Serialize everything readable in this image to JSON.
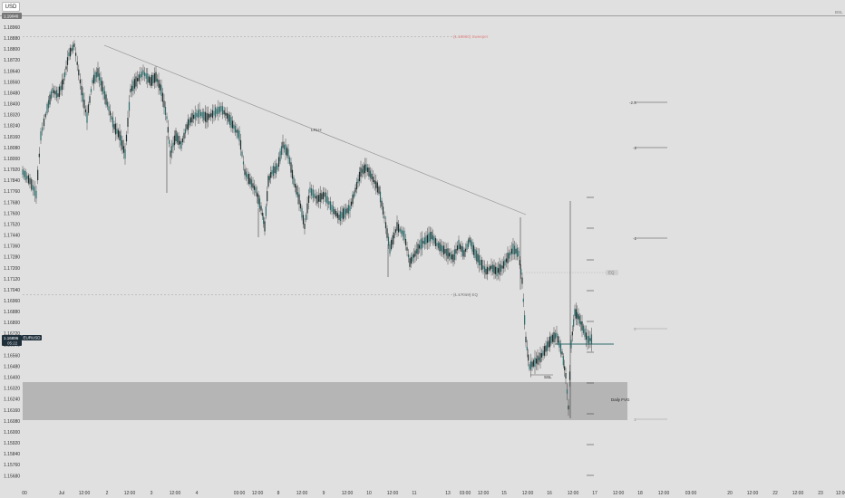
{
  "toolbar": {
    "currency_label": "USD"
  },
  "instrument": "EURUSD",
  "price_axis": {
    "labels": [
      "1.18960",
      "1.18880",
      "1.18800",
      "1.18720",
      "1.18640",
      "1.18560",
      "1.18480",
      "1.18400",
      "1.18320",
      "1.18240",
      "1.18160",
      "1.18080",
      "1.18000",
      "1.17920",
      "1.17840",
      "1.17760",
      "1.17680",
      "1.17600",
      "1.17520",
      "1.17440",
      "1.17360",
      "1.17280",
      "1.17200",
      "1.17120",
      "1.17040",
      "1.16960",
      "1.16880",
      "1.16800",
      "1.16720",
      "1.16640",
      "1.16560",
      "1.16480",
      "1.16400",
      "1.16320",
      "1.16240",
      "1.16160",
      "1.16080",
      "1.16000",
      "1.15920",
      "1.15840",
      "1.15760",
      "1.15680"
    ],
    "top_tag": "1.19046",
    "current_price_tag": "1.16896",
    "countdown_tag": "05:22",
    "symbol_tag": "EURUSD"
  },
  "time_axis": {
    "labels": [
      "00",
      "Jul",
      "12:00",
      "2",
      "12:00",
      "3",
      "12:00",
      "4",
      "03:00",
      "12:00",
      "8",
      "12:00",
      "9",
      "12:00",
      "10",
      "12:00",
      "11",
      "13",
      "03:00",
      "12:00",
      "15",
      "12:00",
      "16",
      "12:00",
      "17",
      "12:00",
      "18",
      "12:00",
      "03:00",
      "20",
      "12:00",
      "22",
      "12:00",
      "23",
      "12:00",
      "24",
      "12:00"
    ]
  },
  "annotations": {
    "swing_high_label": "(1.18960) Sweeper",
    "trendline_label": "LRLH",
    "eq_label": "(1.17019) EQ",
    "ssl_label": "SSL",
    "daily_fvg_label": "Daily FVG",
    "top_right_label": "BSL",
    "eq_zone_label": "EQ"
  },
  "fib_levels": [
    "-2.5",
    "-2",
    "-1",
    "0",
    "1"
  ],
  "colors": {
    "background": "#e0e0e0",
    "bull": "#2f6b6b",
    "bear": "#1f2f2f",
    "zone": "#b5b5b5",
    "sweep": "#e08080"
  },
  "chart_data": {
    "type": "candlestick",
    "title": "",
    "y_range": [
      1.1562,
      1.1906
    ],
    "prices": {
      "swing_high": 1.1896,
      "eq": 1.17019,
      "fvg_top": 1.1637,
      "fvg_bottom": 1.1609,
      "current": 1.16896,
      "top_line": 1.19046
    }
  }
}
